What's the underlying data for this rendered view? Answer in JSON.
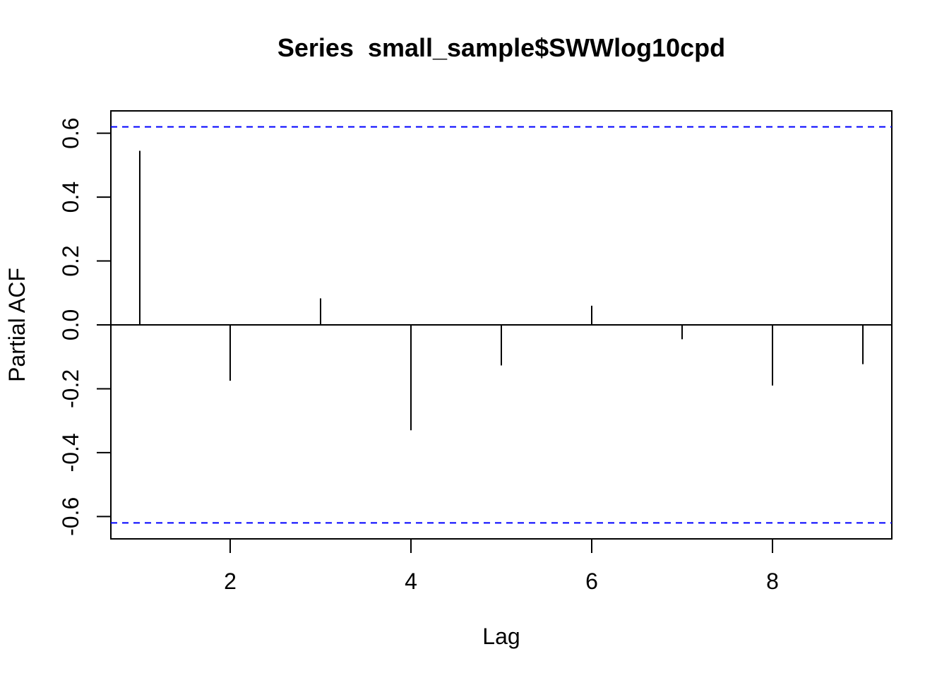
{
  "chart_data": {
    "type": "bar",
    "title": "Series  small_sample$SWWlog10cpd",
    "xlabel": "Lag",
    "ylabel": "Partial ACF",
    "x": [
      1,
      2,
      3,
      4,
      5,
      6,
      7,
      8,
      9
    ],
    "values": [
      0.545,
      -0.175,
      0.083,
      -0.33,
      -0.127,
      0.06,
      -0.045,
      -0.19,
      -0.123
    ],
    "xlim": [
      0.68,
      9.32
    ],
    "ylim": [
      -0.67,
      0.67
    ],
    "xticks": [
      2,
      4,
      6,
      8
    ],
    "yticks": [
      -0.6,
      -0.4,
      -0.2,
      0.0,
      0.2,
      0.4,
      0.6
    ],
    "ytick_labels": [
      "-0.6",
      "-0.4",
      "-0.2",
      "0.0",
      "0.2",
      "0.4",
      "0.6"
    ],
    "confidence_bounds": [
      0.62,
      -0.62
    ],
    "bound_color": "#0000ff",
    "spike_color": "#000000",
    "zero_line": true,
    "grid": false
  }
}
